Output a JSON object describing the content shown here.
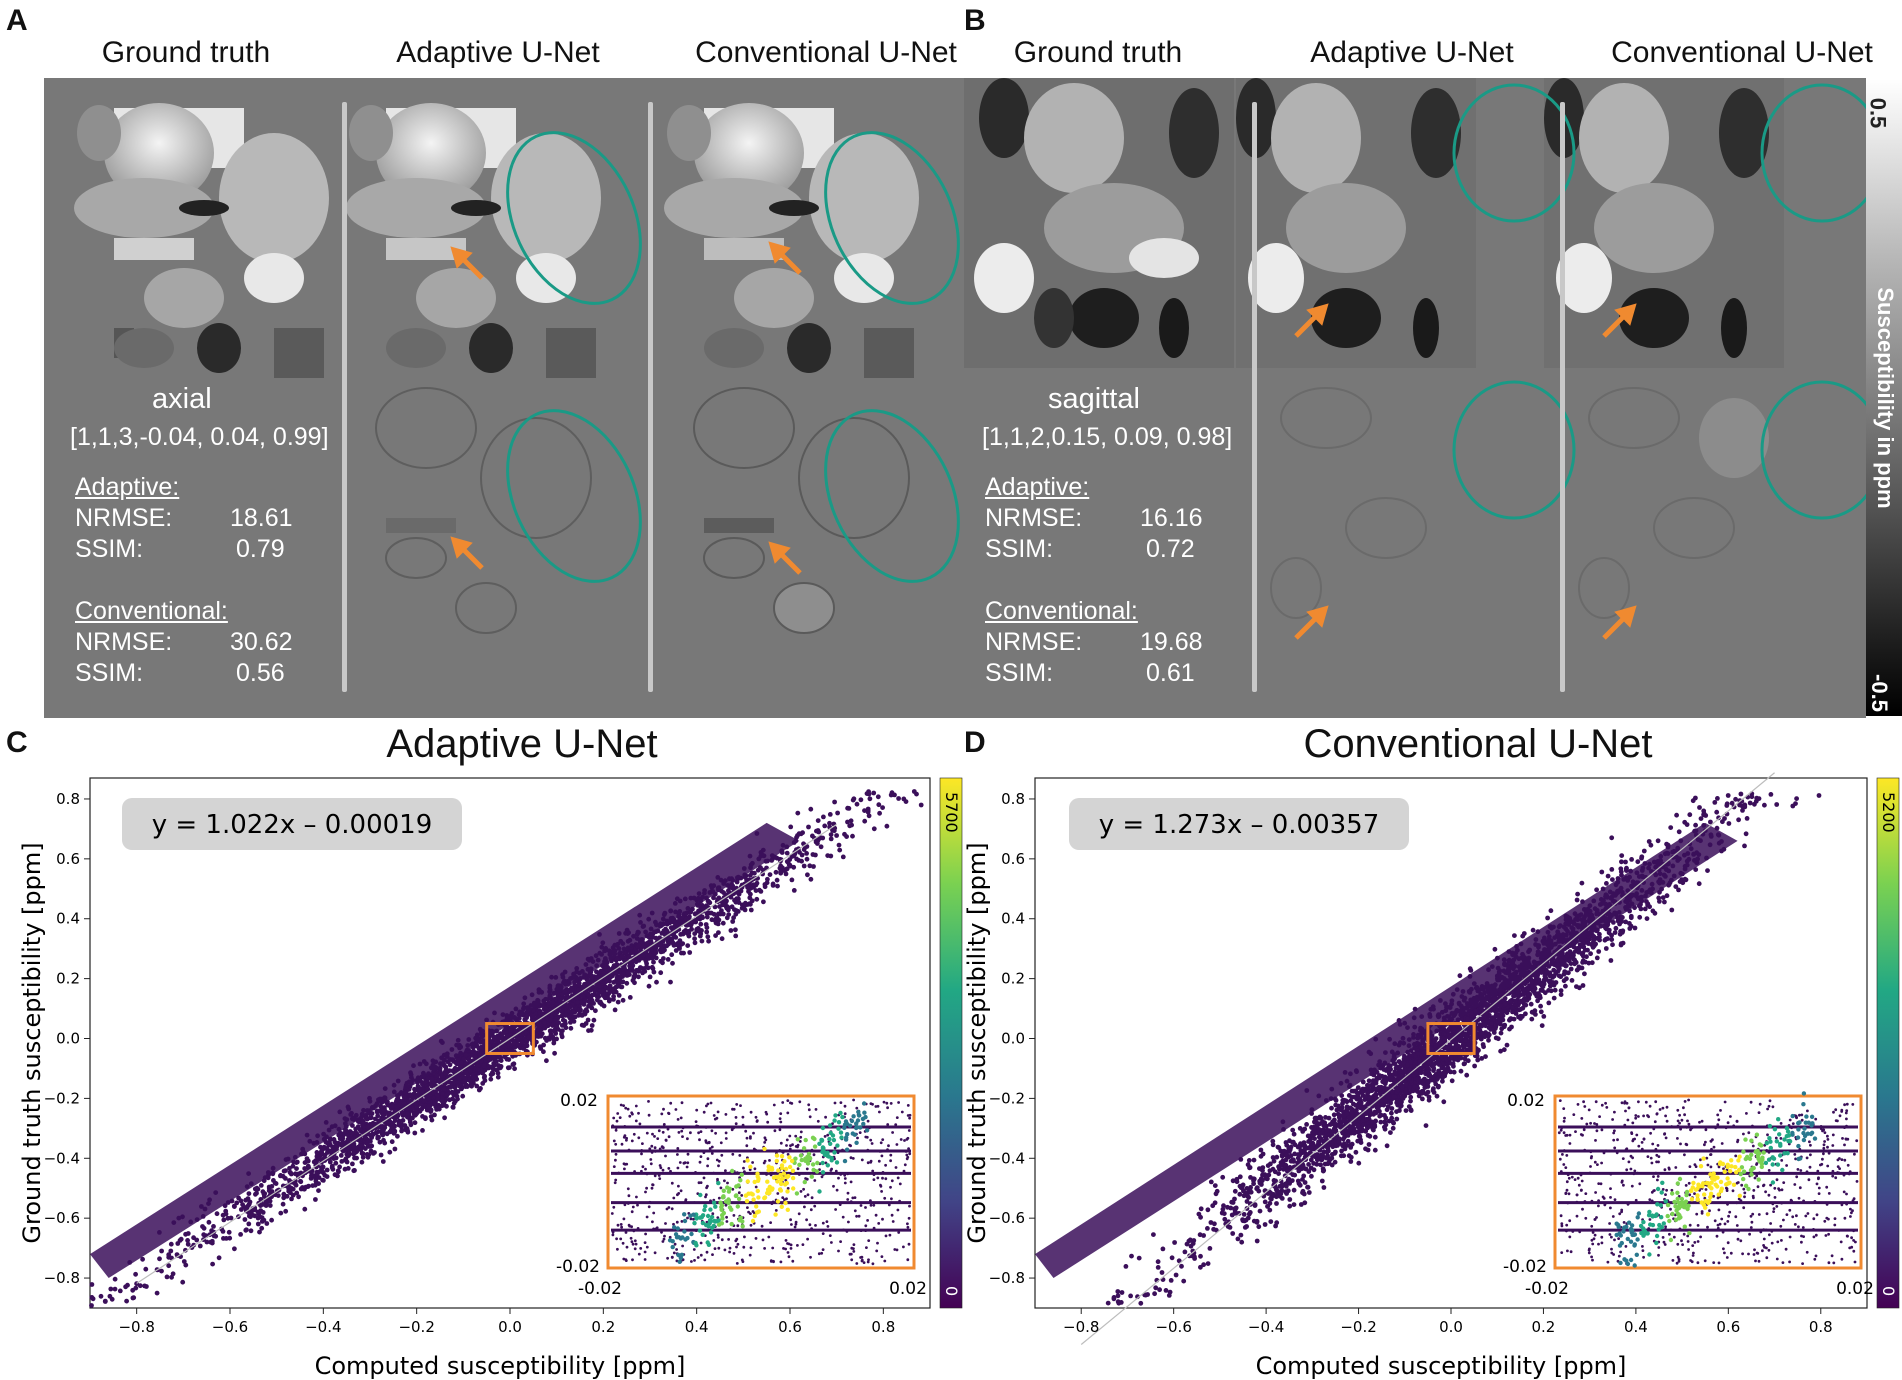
{
  "panels": {
    "A": {
      "letter": "A",
      "titles": [
        "Ground truth",
        "Adaptive U-Net",
        "Conventional U-Net"
      ],
      "orientation": "axial",
      "params": "[1,1,3,-0.04, 0.04, 0.99]",
      "adaptive": {
        "heading": "Adaptive:",
        "nrmse_label": "NRMSE:",
        "nrmse": "18.61",
        "ssim_label": "SSIM:",
        "ssim": "0.79"
      },
      "conventional": {
        "heading": "Conventional:",
        "nrmse_label": "NRMSE:",
        "nrmse": "30.62",
        "ssim_label": "SSIM:",
        "ssim": "0.56"
      }
    },
    "B": {
      "letter": "B",
      "titles": [
        "Ground truth",
        "Adaptive U-Net",
        "Conventional U-Net"
      ],
      "orientation": "sagittal",
      "params": "[1,1,2,0.15, 0.09, 0.98]",
      "adaptive": {
        "heading": "Adaptive:",
        "nrmse_label": "NRMSE:",
        "nrmse": "16.16",
        "ssim_label": "SSIM:",
        "ssim": "0.72"
      },
      "conventional": {
        "heading": "Conventional:",
        "nrmse_label": "NRMSE:",
        "nrmse": "19.68",
        "ssim_label": "SSIM:",
        "ssim": "0.61"
      }
    }
  },
  "colorbar_gray": {
    "max": "0.5",
    "min": "-0.5",
    "label": "Susceptibility in ppm"
  },
  "colors": {
    "panel_gray": "#787878",
    "ellipse": "#1a9a86",
    "arrow": "#f08a30",
    "inset_box": "#f08a30",
    "scatter": "#3b0f5a"
  },
  "chart_data": [
    {
      "type": "scatter",
      "letter": "C",
      "title": "Adaptive U-Net",
      "xlabel": "Computed susceptibility [ppm]",
      "ylabel": "Ground truth susceptibility [ppm]",
      "xlim": [
        -0.9,
        0.9
      ],
      "ylim": [
        -0.9,
        0.87
      ],
      "xticks": [
        "−0.8",
        "−0.6",
        "−0.4",
        "−0.2",
        "0.0",
        "0.2",
        "0.4",
        "0.6",
        "0.8"
      ],
      "xtick_values": [
        -0.8,
        -0.6,
        -0.4,
        -0.2,
        0.0,
        0.2,
        0.4,
        0.6,
        0.8
      ],
      "yticks": [
        "−0.8",
        "−0.6",
        "−0.4",
        "−0.2",
        "0.0",
        "0.2",
        "0.4",
        "0.6",
        "0.8"
      ],
      "ytick_values": [
        -0.8,
        -0.6,
        -0.4,
        -0.2,
        0.0,
        0.2,
        0.4,
        0.6,
        0.8
      ],
      "fit": {
        "slope": 1.022,
        "intercept": -0.00019,
        "equation": "y = 1.022x – 0.00019"
      },
      "colorbar": {
        "max": "5700",
        "min": "0"
      },
      "inset": {
        "x_range": [
          -0.02,
          0.02
        ],
        "y_range": [
          -0.02,
          0.02
        ],
        "xmin_label": "-0.02",
        "xmax_label": "0.02",
        "ymin_label": "-0.02",
        "ymax_label": "0.02"
      }
    },
    {
      "type": "scatter",
      "letter": "D",
      "title": "Conventional U-Net",
      "xlabel": "Computed susceptibility [ppm]",
      "ylabel": "Ground truth susceptibility [ppm]",
      "xlim": [
        -0.9,
        0.9
      ],
      "ylim": [
        -0.9,
        0.87
      ],
      "xticks": [
        "−0.8",
        "−0.6",
        "−0.4",
        "−0.2",
        "0.0",
        "0.2",
        "0.4",
        "0.6",
        "0.8"
      ],
      "xtick_values": [
        -0.8,
        -0.6,
        -0.4,
        -0.2,
        0.0,
        0.2,
        0.4,
        0.6,
        0.8
      ],
      "yticks": [
        "−0.8",
        "−0.6",
        "−0.4",
        "−0.2",
        "0.0",
        "0.2",
        "0.4",
        "0.6",
        "0.8"
      ],
      "ytick_values": [
        -0.8,
        -0.6,
        -0.4,
        -0.2,
        0.0,
        0.2,
        0.4,
        0.6,
        0.8
      ],
      "fit": {
        "slope": 1.273,
        "intercept": -0.00357,
        "equation": "y = 1.273x – 0.00357"
      },
      "colorbar": {
        "max": "5200",
        "min": "0"
      },
      "inset": {
        "x_range": [
          -0.02,
          0.02
        ],
        "y_range": [
          -0.02,
          0.02
        ],
        "xmin_label": "-0.02",
        "xmax_label": "0.02",
        "ymin_label": "-0.02",
        "ymax_label": "0.02"
      }
    }
  ]
}
